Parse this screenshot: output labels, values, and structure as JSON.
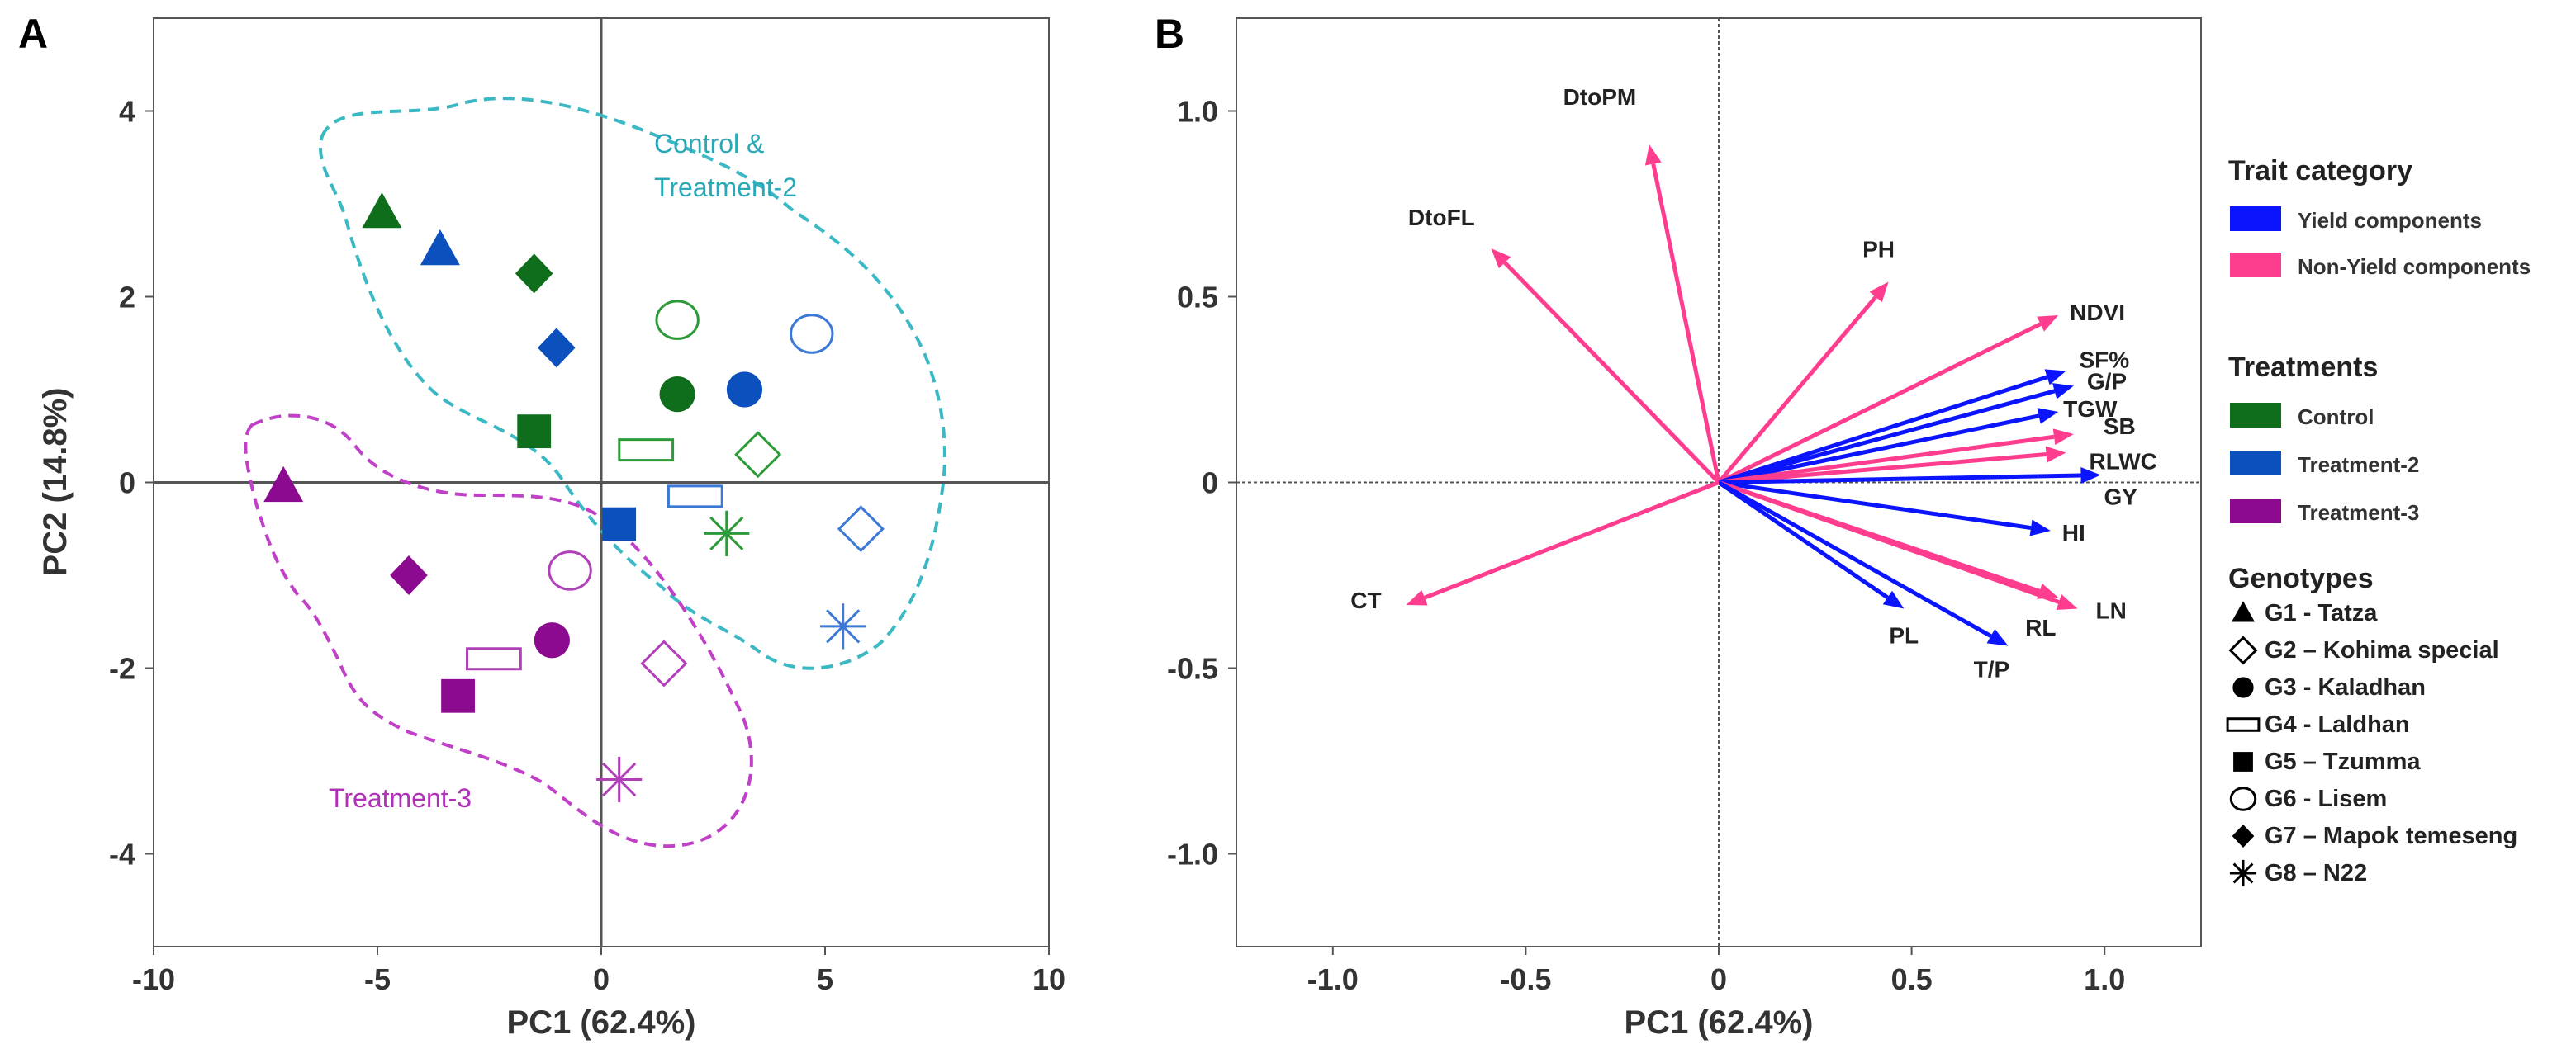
{
  "chart_data": [
    {
      "panel": "A",
      "type": "scatter",
      "xlabel": "PC1 (62.4%)",
      "ylabel": "PC2 (14.8%)",
      "xlim": [
        -10,
        10
      ],
      "ylim": [
        -5,
        5
      ],
      "xticks": [
        -10,
        -5,
        0,
        5,
        10
      ],
      "yticks": [
        -4,
        -2,
        0,
        2,
        4
      ],
      "xtick_labels": [
        "-10",
        "-5",
        "0",
        "5",
        "10"
      ],
      "ytick_labels": [
        "-4",
        "-2",
        "0",
        "2",
        "4"
      ],
      "group_annotations": [
        "Control &",
        "Treatment-2",
        "Treatment-3"
      ],
      "points": [
        {
          "genotype": "G1",
          "treatment": "Control",
          "x": -4.9,
          "y": 2.9
        },
        {
          "genotype": "G1",
          "treatment": "Treatment-2",
          "x": -3.6,
          "y": 2.5
        },
        {
          "genotype": "G1",
          "treatment": "Treatment-3",
          "x": -7.1,
          "y": -0.05
        },
        {
          "genotype": "G2",
          "treatment": "Control",
          "x": 3.5,
          "y": 0.3
        },
        {
          "genotype": "G2",
          "treatment": "Treatment-2",
          "x": 5.8,
          "y": -0.5
        },
        {
          "genotype": "G2",
          "treatment": "Treatment-3",
          "x": 1.4,
          "y": -1.95
        },
        {
          "genotype": "G3",
          "treatment": "Control",
          "x": 1.7,
          "y": 0.95
        },
        {
          "genotype": "G3",
          "treatment": "Treatment-2",
          "x": 3.2,
          "y": 1.0
        },
        {
          "genotype": "G3",
          "treatment": "Treatment-3",
          "x": -1.1,
          "y": -1.7
        },
        {
          "genotype": "G4",
          "treatment": "Control",
          "x": 1.0,
          "y": 0.35
        },
        {
          "genotype": "G4",
          "treatment": "Treatment-2",
          "x": 2.1,
          "y": -0.15
        },
        {
          "genotype": "G4",
          "treatment": "Treatment-3",
          "x": -2.4,
          "y": -1.9
        },
        {
          "genotype": "G5",
          "treatment": "Control",
          "x": -1.5,
          "y": 0.55
        },
        {
          "genotype": "G5",
          "treatment": "Treatment-2",
          "x": 0.4,
          "y": -0.45
        },
        {
          "genotype": "G5",
          "treatment": "Treatment-3",
          "x": -3.2,
          "y": -2.3
        },
        {
          "genotype": "G6",
          "treatment": "Control",
          "x": 1.7,
          "y": 1.75
        },
        {
          "genotype": "G6",
          "treatment": "Treatment-2",
          "x": 4.7,
          "y": 1.6
        },
        {
          "genotype": "G6",
          "treatment": "Treatment-3",
          "x": -0.7,
          "y": -0.95
        },
        {
          "genotype": "G7",
          "treatment": "Control",
          "x": -1.5,
          "y": 2.25
        },
        {
          "genotype": "G7",
          "treatment": "Treatment-2",
          "x": -1.0,
          "y": 1.45
        },
        {
          "genotype": "G7",
          "treatment": "Treatment-3",
          "x": -4.3,
          "y": -1.0
        },
        {
          "genotype": "G8",
          "treatment": "Control",
          "x": 2.8,
          "y": -0.55
        },
        {
          "genotype": "G8",
          "treatment": "Treatment-2",
          "x": 5.4,
          "y": -1.55
        },
        {
          "genotype": "G8",
          "treatment": "Treatment-3",
          "x": 0.4,
          "y": -3.2
        }
      ]
    },
    {
      "panel": "B",
      "type": "biplot",
      "xlabel": "PC1 (62.4%)",
      "xlim": [
        -1.25,
        1.25
      ],
      "ylim": [
        -1.25,
        1.25
      ],
      "xticks": [
        -1.0,
        -0.5,
        0,
        0.5,
        1.0
      ],
      "yticks": [
        -1.0,
        -0.5,
        0,
        0.5,
        1.0
      ],
      "xtick_labels": [
        "-1.0",
        "-0.5",
        "0",
        "0.5",
        "1.0"
      ],
      "ytick_labels": [
        "-1.0",
        "-0.5",
        "0",
        "0.5",
        "1.0"
      ],
      "vectors": [
        {
          "trait": "DtoPM",
          "category": "Non-Yield components",
          "x": -0.18,
          "y": 0.91
        },
        {
          "trait": "DtoFL",
          "category": "Non-Yield components",
          "x": -0.59,
          "y": 0.63
        },
        {
          "trait": "PH",
          "category": "Non-Yield components",
          "x": 0.44,
          "y": 0.54
        },
        {
          "trait": "NDVI",
          "category": "Non-Yield components",
          "x": 0.88,
          "y": 0.45
        },
        {
          "trait": "SF%",
          "category": "Yield components",
          "x": 0.9,
          "y": 0.3
        },
        {
          "trait": "G/P",
          "category": "Yield components",
          "x": 0.92,
          "y": 0.26
        },
        {
          "trait": "TGW",
          "category": "Yield components",
          "x": 0.88,
          "y": 0.19
        },
        {
          "trait": "SB",
          "category": "Non-Yield components",
          "x": 0.92,
          "y": 0.13
        },
        {
          "trait": "RLWC",
          "category": "Non-Yield components",
          "x": 0.9,
          "y": 0.08
        },
        {
          "trait": "GY",
          "category": "Yield components",
          "x": 0.99,
          "y": 0.02
        },
        {
          "trait": "HI",
          "category": "Yield components",
          "x": 0.86,
          "y": -0.13
        },
        {
          "trait": "LN",
          "category": "Non-Yield components",
          "x": 0.93,
          "y": -0.34
        },
        {
          "trait": "RL",
          "category": "Non-Yield components",
          "x": 0.88,
          "y": -0.31
        },
        {
          "trait": "T/P",
          "category": "Yield components",
          "x": 0.75,
          "y": -0.44
        },
        {
          "trait": "PL",
          "category": "Yield components",
          "x": 0.48,
          "y": -0.34
        },
        {
          "trait": "CT",
          "category": "Non-Yield components",
          "x": -0.81,
          "y": -0.33
        }
      ]
    }
  ],
  "panel_labels": {
    "a": "A",
    "b": "B"
  },
  "legend": {
    "trait_title": "Trait category",
    "trait_items": [
      {
        "label": "Yield components",
        "color": "#0a14ff"
      },
      {
        "label": "Non-Yield components",
        "color": "#ff3d8f"
      }
    ],
    "treat_title": "Treatments",
    "treat_items": [
      {
        "label": "Control",
        "color": "#0f6e1c"
      },
      {
        "label": "Treatment-2",
        "color": "#0c50bd"
      },
      {
        "label": "Treatment-3",
        "color": "#8b0a8f"
      }
    ],
    "geno_title": "Genotypes",
    "geno_items": [
      {
        "id": "G1",
        "label": "G1 - Tatza",
        "marker": "triangle"
      },
      {
        "id": "G2",
        "label": "G2 – Kohima special",
        "marker": "diamond-open"
      },
      {
        "id": "G3",
        "label": "G3 - Kaladhan",
        "marker": "circle"
      },
      {
        "id": "G4",
        "label": "G4 - Laldhan",
        "marker": "rect-open"
      },
      {
        "id": "G5",
        "label": "G5 – Tzumma",
        "marker": "square"
      },
      {
        "id": "G6",
        "label": "G6 - Lisem",
        "marker": "circle-open"
      },
      {
        "id": "G7",
        "label": "G7 – Mapok temeseng",
        "marker": "diamond"
      },
      {
        "id": "G8",
        "label": "G8 – N22",
        "marker": "asterisk"
      }
    ]
  },
  "colors": {
    "control": "#0f6e1c",
    "treatment2": "#0c50bd",
    "treatment3": "#8b0a8f",
    "control_open": "#2d9a3a",
    "treatment2_open": "#3c78d6",
    "treatment3_open": "#b040b8",
    "hull_control": "#3ab8c4",
    "hull_t3": "#c040c8",
    "yield": "#0a14ff",
    "nonyield": "#ff3d8f"
  }
}
